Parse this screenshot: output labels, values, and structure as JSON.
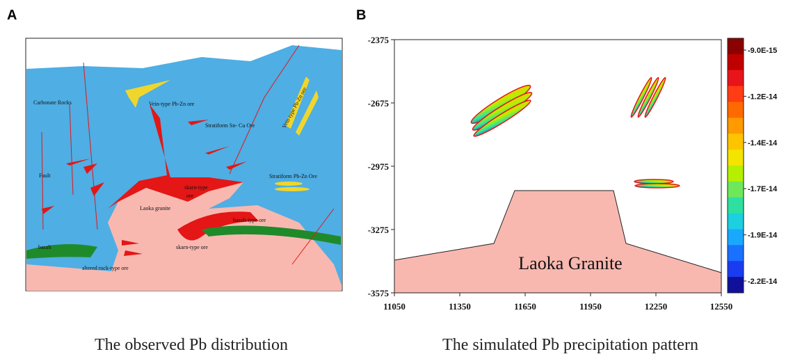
{
  "panel_labels": [
    "A",
    "B"
  ],
  "captions": [
    "The observed Pb distribution",
    "The simulated Pb precipitation pattern"
  ],
  "map": {
    "labels": [
      "Carbonate Rocks",
      "Vein-type Pb-Zn ore",
      "Stratiform Sn- Cu Ore",
      "Vein-type Pb-Zn ore",
      "Fault",
      "Stratiform Pb-Zn Ore",
      "skarn-type",
      "ore",
      "Laoka granite",
      "basalt-type  ore",
      "skarn-type ore",
      "basalt",
      "altered rock-type ore"
    ]
  },
  "chart_data": {
    "type": "contour",
    "annotation": "Laoka Granite",
    "xlim": [
      11050,
      12550
    ],
    "xticks": [
      11050,
      11350,
      11650,
      11950,
      12250,
      12550
    ],
    "ylim": [
      -3575,
      -2375
    ],
    "yticks": [
      -2375,
      -2675,
      -2975,
      -3275,
      -3575
    ],
    "colorbar": {
      "labels": [
        "-9.0E-15",
        "-1.2E-14",
        "-1.4E-14",
        "-1.7E-14",
        "-1.9E-14",
        "-2.2E-14"
      ],
      "colors": [
        "#8b0000",
        "#c00000",
        "#e8141a",
        "#ff3c14",
        "#ff6a00",
        "#ff9a00",
        "#ffc400",
        "#f5e400",
        "#b4f000",
        "#6ee85a",
        "#2ee0a0",
        "#1cd0e0",
        "#1aa8ff",
        "#1a70ff",
        "#1a3cf0",
        "#10109a"
      ]
    }
  }
}
